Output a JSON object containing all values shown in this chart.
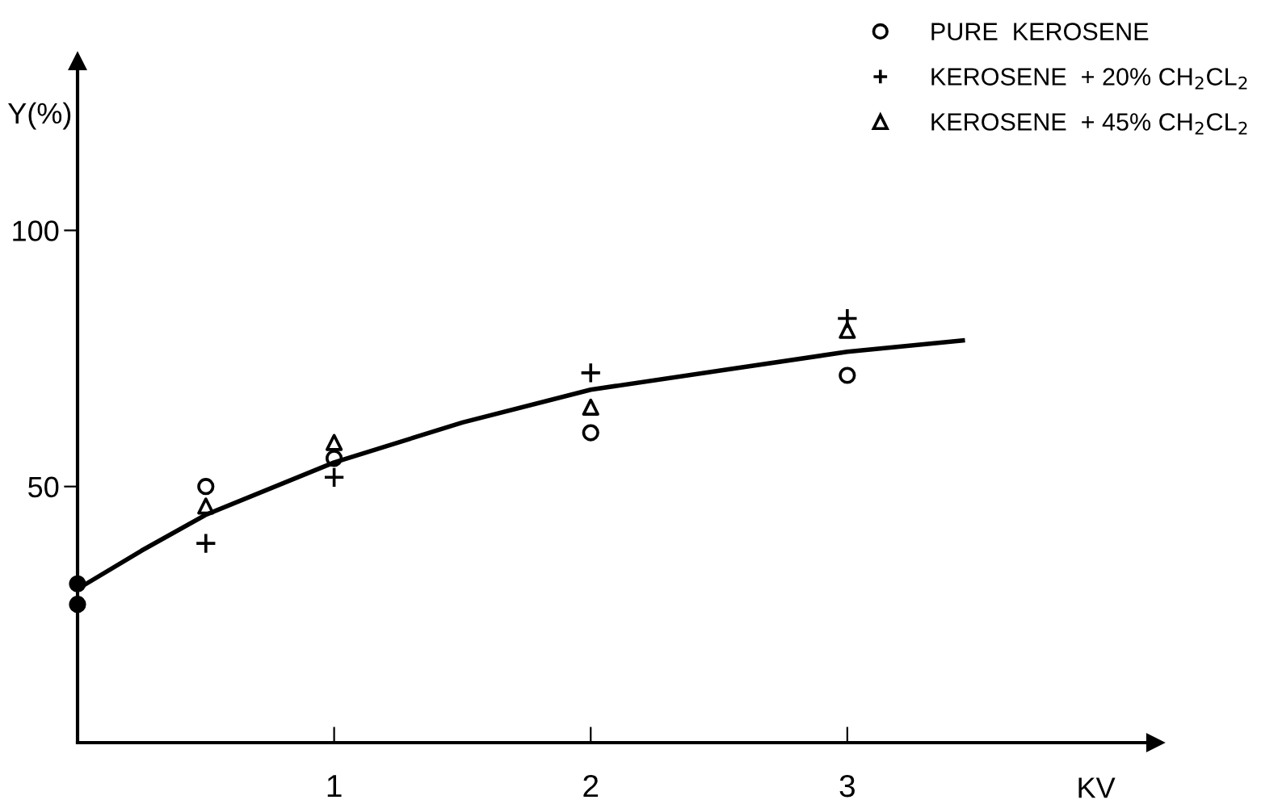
{
  "chart_data": {
    "type": "scatter",
    "xlabel": "KV",
    "ylabel": "Y(%)",
    "xlim": [
      0,
      4.2
    ],
    "ylim": [
      0,
      133
    ],
    "xticks": [
      1,
      2,
      3
    ],
    "yticks": [
      50,
      100
    ],
    "grid": false,
    "legend": "top right",
    "series": [
      {
        "name": "PURE  KEROSENE",
        "color": "#000000",
        "marker": "circle",
        "x": [
          0.5,
          1,
          2,
          3
        ],
        "values": [
          50.0,
          55.5,
          60.5,
          71.7
        ]
      },
      {
        "name": "KEROSENE  + 20% CH$_{2}$CL$_{2}$",
        "color": "#000000",
        "marker": "cross",
        "x": [
          0.5,
          1,
          2,
          3
        ],
        "values": [
          38.9,
          51.8,
          72.2,
          82.8
        ]
      },
      {
        "name": "KEROSENE  + 45% CH$_{2}$CL$_{2}$",
        "color": "#000000",
        "marker": "triangle",
        "x": [
          0.5,
          1,
          2,
          3
        ],
        "values": [
          46.2,
          58.6,
          65.5,
          80.5
        ]
      },
      {
        "color": "#000000",
        "marker": "circle",
        "x": [
          0,
          0
        ],
        "values": [
          31,
          27
        ]
      },
      {
        "type": "line",
        "color": "#000000",
        "marker": "none",
        "line_style": "solid",
        "x": [
          0,
          0.25,
          0.5,
          1,
          1.5,
          2,
          2.5,
          3,
          3.45
        ],
        "values": [
          30,
          37.5,
          44.5,
          54.7,
          62.5,
          68.9,
          72.6,
          76.3,
          78.5
        ]
      }
    ]
  }
}
